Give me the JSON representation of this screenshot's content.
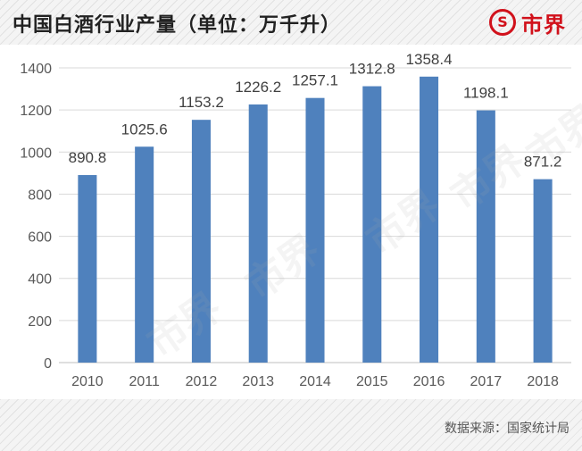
{
  "header": {
    "title": "中国白酒行业产量（单位：万千升）",
    "brand": {
      "icon": "logo-s-circle-icon",
      "icon_glyph": "S",
      "name": "市界"
    }
  },
  "watermark": "市界",
  "source": "数据来源：国家统计局",
  "colors": {
    "bar": "#4f81bd",
    "brand": "#d1111b",
    "grid": "#d9d9d9"
  },
  "chart_data": {
    "type": "bar",
    "title": "中国白酒行业产量（单位：万千升）",
    "categories": [
      "2010",
      "2011",
      "2012",
      "2013",
      "2014",
      "2015",
      "2016",
      "2017",
      "2018"
    ],
    "values": [
      890.8,
      1025.6,
      1153.2,
      1226.2,
      1257.1,
      1312.8,
      1358.4,
      1198.1,
      871.2
    ],
    "data_labels": [
      "890.8",
      "1025.6",
      "1153.2",
      "1226.2",
      "1257.1",
      "1312.8",
      "1358.4",
      "1198.1",
      "871.2"
    ],
    "ylim": [
      0,
      1400
    ],
    "yticks": [
      0,
      200,
      400,
      600,
      800,
      1000,
      1200,
      1400
    ],
    "grid": true,
    "legend": "none"
  }
}
